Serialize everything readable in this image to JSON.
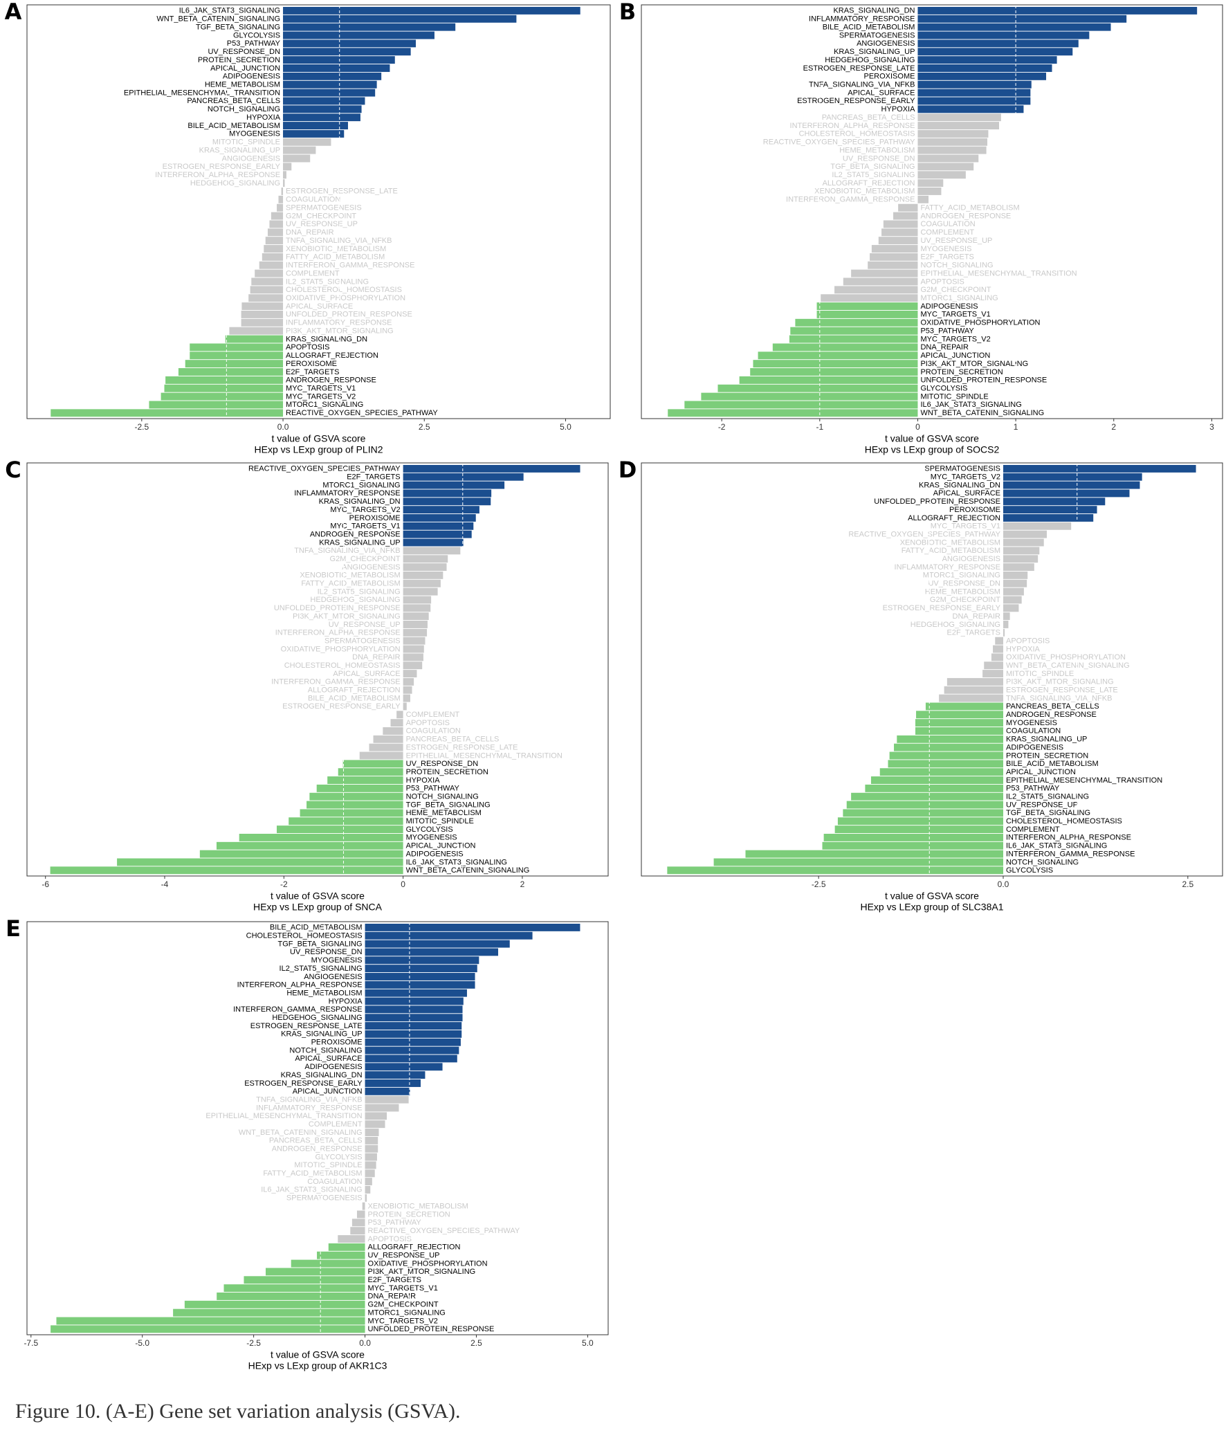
{
  "caption": "Figure 10. (A-E) Gene set variation analysis (GSVA).",
  "chart_data": [
    {
      "type": "bar",
      "orientation": "horizontal",
      "panel_label": "A",
      "x_label": "t value of GSVA score",
      "subtitle": "HExp vs LExp group of PLIN2",
      "xlim": [
        -4.53,
        5.79
      ],
      "xticks": [
        -2.5,
        {
          "value": 0,
          "label": "0.0"
        },
        2.5,
        {
          "value": 5,
          "label": "5.0"
        }
      ],
      "ref_lines": [
        -1,
        1
      ],
      "muted_color": "#c9c9c9",
      "categories": [
        "IL6_JAK_STAT3_SIGNALING",
        "WNT_BETA_CATENIN_SIGNALING",
        "TGF_BETA_SIGNALING",
        "GLYCOLYSIS",
        "P53_PATHWAY",
        "UV_RESPONSE_DN",
        "PROTEIN_SECRETION",
        "APICAL_JUNCTION",
        "ADIPOGENESIS",
        "HEME_METABOLISM",
        "EPITHELIAL_MESENCHYMAL_TRANSITION",
        "PANCREAS_BETA_CELLS",
        "NOTCH_SIGNALING",
        "HYPOXIA",
        "BILE_ACID_METABOLISM",
        "MYOGENESIS",
        "MITOTIC_SPINDLE",
        "KRAS_SIGNALING_UP",
        "ANGIOGENESIS",
        "ESTROGEN_RESPONSE_EARLY",
        "INTERFERON_ALPHA_RESPONSE",
        "HEDGEHOG_SIGNALING",
        "ESTROGEN_RESPONSE_LATE",
        "COAGULATION",
        "SPERMATOGENESIS",
        "G2M_CHECKPOINT",
        "UV_RESPONSE_UP",
        "DNA_REPAIR",
        "TNFA_SIGNALING_VIA_NFKB",
        "XENOBIOTIC_METABOLISM",
        "FATTY_ACID_METABOLISM",
        "INTERFERON_GAMMA_RESPONSE",
        "COMPLEMENT",
        "IL2_STAT5_SIGNALING",
        "CHOLESTEROL_HOMEOSTASIS",
        "OXIDATIVE_PHOSPHORYLATION",
        "APICAL_SURFACE",
        "UNFOLDED_PROTEIN_RESPONSE",
        "INFLAMMATORY_RESPONSE",
        "PI3K_AKT_MTOR_SIGNALING",
        "KRAS_SIGNALING_DN",
        "APOPTOSIS",
        "ALLOGRAFT_REJECTION",
        "PEROXISOME",
        "E2F_TARGETS",
        "ANDROGEN_RESPONSE",
        "MYC_TARGETS_V1",
        "MYC_TARGETS_V2",
        "MTORC1_SIGNALING",
        "REACTIVE_OXYGEN_SPECIES_PATHWAY"
      ],
      "values": [
        5.26,
        4.13,
        3.05,
        2.68,
        2.35,
        2.26,
        1.98,
        1.89,
        1.74,
        1.66,
        1.63,
        1.45,
        1.39,
        1.37,
        1.15,
        1.08,
        0.85,
        0.58,
        0.48,
        0.15,
        0.06,
        0.03,
        -0.03,
        -0.08,
        -0.11,
        -0.21,
        -0.24,
        -0.27,
        -0.31,
        -0.34,
        -0.37,
        -0.42,
        -0.5,
        -0.56,
        -0.58,
        -0.61,
        -0.73,
        -0.74,
        -0.74,
        -0.95,
        -1.02,
        -1.65,
        -1.65,
        -1.73,
        -1.85,
        -2.08,
        -2.1,
        -2.16,
        -2.37,
        -4.11
      ],
      "colors": [
        "#1b4e8f",
        "#1b4e8f",
        "#1b4e8f",
        "#1b4e8f",
        "#1b4e8f",
        "#1b4e8f",
        "#1b4e8f",
        "#1b4e8f",
        "#1b4e8f",
        "#1b4e8f",
        "#1b4e8f",
        "#1b4e8f",
        "#1b4e8f",
        "#1b4e8f",
        "#1b4e8f",
        "#1b4e8f",
        "#c9c9c9",
        "#c9c9c9",
        "#c9c9c9",
        "#c9c9c9",
        "#c9c9c9",
        "#c9c9c9",
        "#c9c9c9",
        "#c9c9c9",
        "#c9c9c9",
        "#c9c9c9",
        "#c9c9c9",
        "#c9c9c9",
        "#c9c9c9",
        "#c9c9c9",
        "#c9c9c9",
        "#c9c9c9",
        "#c9c9c9",
        "#c9c9c9",
        "#c9c9c9",
        "#c9c9c9",
        "#c9c9c9",
        "#c9c9c9",
        "#c9c9c9",
        "#c9c9c9",
        "#7ccd7a",
        "#7ccd7a",
        "#7ccd7a",
        "#7ccd7a",
        "#7ccd7a",
        "#7ccd7a",
        "#7ccd7a",
        "#7ccd7a",
        "#7ccd7a",
        "#7ccd7a"
      ]
    },
    {
      "type": "bar",
      "orientation": "horizontal",
      "panel_label": "B",
      "x_label": "t value of GSVA score",
      "subtitle": "HExp vs LExp group of SOCS2",
      "xlim": [
        -2.82,
        3.11
      ],
      "xticks": [
        -2,
        -1,
        0,
        1,
        2,
        3
      ],
      "ref_lines": [
        -1,
        1
      ],
      "muted_color": "#c9c9c9",
      "categories": [
        "KRAS_SIGNALING_DN",
        "INFLAMMATORY_RESPONSE",
        "BILE_ACID_METABOLISM",
        "SPERMATOGENESIS",
        "ANGIOGENESIS",
        "KRAS_SIGNALING_UP",
        "HEDGEHOG_SIGNALING",
        "ESTROGEN_RESPONSE_LATE",
        "PEROXISOME",
        "TNFA_SIGNALING_VIA_NFKB",
        "APICAL_SURFACE",
        "ESTROGEN_RESPONSE_EARLY",
        "HYPOXIA",
        "PANCREAS_BETA_CELLS",
        "INTERFERON_ALPHA_RESPONSE",
        "CHOLESTEROL_HOMEOSTASIS",
        "REACTIVE_OXYGEN_SPECIES_PATHWAY",
        "HEME_METABOLISM",
        "UV_RESPONSE_DN",
        "TGF_BETA_SIGNALING",
        "IL2_STAT5_SIGNALING",
        "ALLOGRAFT_REJECTION",
        "XENOBIOTIC_METABOLISM",
        "INTERFERON_GAMMA_RESPONSE",
        "FATTY_ACID_METABOLISM",
        "ANDROGEN_RESPONSE",
        "COAGULATION",
        "COMPLEMENT",
        "UV_RESPONSE_UP",
        "MYOGENESIS",
        "E2F_TARGETS",
        "NOTCH_SIGNALING",
        "EPITHELIAL_MESENCHYMAL_TRANSITION",
        "APOPTOSIS",
        "G2M_CHECKPOINT",
        "MTORC1_SIGNALING",
        "ADIPOGENESIS",
        "MYC_TARGETS_V1",
        "OXIDATIVE_PHOSPHORYLATION",
        "P53_PATHWAY",
        "MYC_TARGETS_V2",
        "DNA_REPAIR",
        "APICAL_JUNCTION",
        "PI3K_AKT_MTOR_SIGNALING",
        "PROTEIN_SECRETION",
        "UNFOLDED_PROTEIN_RESPONSE",
        "GLYCOLYSIS",
        "MITOTIC_SPINDLE",
        "IL6_JAK_STAT3_SIGNALING",
        "WNT_BETA_CATENIN_SIGNALING"
      ],
      "values": [
        2.85,
        2.13,
        1.97,
        1.75,
        1.64,
        1.58,
        1.42,
        1.37,
        1.31,
        1.16,
        1.15,
        1.15,
        1.08,
        0.85,
        0.83,
        0.72,
        0.71,
        0.7,
        0.62,
        0.57,
        0.49,
        0.26,
        0.24,
        0.11,
        -0.2,
        -0.25,
        -0.35,
        -0.37,
        -0.4,
        -0.47,
        -0.49,
        -0.51,
        -0.68,
        -0.76,
        -0.85,
        -0.99,
        -1.03,
        -1.03,
        -1.25,
        -1.3,
        -1.31,
        -1.48,
        -1.63,
        -1.68,
        -1.71,
        -1.82,
        -2.04,
        -2.21,
        -2.38,
        -2.55
      ],
      "colors": [
        "#1b4e8f",
        "#1b4e8f",
        "#1b4e8f",
        "#1b4e8f",
        "#1b4e8f",
        "#1b4e8f",
        "#1b4e8f",
        "#1b4e8f",
        "#1b4e8f",
        "#1b4e8f",
        "#1b4e8f",
        "#1b4e8f",
        "#1b4e8f",
        "#c9c9c9",
        "#c9c9c9",
        "#c9c9c9",
        "#c9c9c9",
        "#c9c9c9",
        "#c9c9c9",
        "#c9c9c9",
        "#c9c9c9",
        "#c9c9c9",
        "#c9c9c9",
        "#c9c9c9",
        "#c9c9c9",
        "#c9c9c9",
        "#c9c9c9",
        "#c9c9c9",
        "#c9c9c9",
        "#c9c9c9",
        "#c9c9c9",
        "#c9c9c9",
        "#c9c9c9",
        "#c9c9c9",
        "#c9c9c9",
        "#c9c9c9",
        "#7ccd7a",
        "#7ccd7a",
        "#7ccd7a",
        "#7ccd7a",
        "#7ccd7a",
        "#7ccd7a",
        "#7ccd7a",
        "#7ccd7a",
        "#7ccd7a",
        "#7ccd7a",
        "#7ccd7a",
        "#7ccd7a",
        "#7ccd7a",
        "#7ccd7a"
      ]
    },
    {
      "type": "bar",
      "orientation": "horizontal",
      "panel_label": "C",
      "x_label": "t value of GSVA score",
      "subtitle": "HExp vs LExp group of SNCA",
      "xlim": [
        -6.31,
        3.44
      ],
      "xticks": [
        -6,
        -4,
        -2,
        0,
        2
      ],
      "ref_lines": [
        -1,
        1
      ],
      "muted_color": "#c9c9c9",
      "categories": [
        "REACTIVE_OXYGEN_SPECIES_PATHWAY",
        "E2F_TARGETS",
        "MTORC1_SIGNALING",
        "INFLAMMATORY_RESPONSE",
        "KRAS_SIGNALING_DN",
        "MYC_TARGETS_V2",
        "PEROXISOME",
        "MYC_TARGETS_V1",
        "ANDROGEN_RESPONSE",
        "KRAS_SIGNALING_UP",
        "TNFA_SIGNALING_VIA_NFKB",
        "G2M_CHECKPOINT",
        "ANGIOGENESIS",
        "XENOBIOTIC_METABOLISM",
        "FATTY_ACID_METABOLISM",
        "IL2_STAT5_SIGNALING",
        "HEDGEHOG_SIGNALING",
        "UNFOLDED_PROTEIN_RESPONSE",
        "PI3K_AKT_MTOR_SIGNALING",
        "UV_RESPONSE_UP",
        "INTERFERON_ALPHA_RESPONSE",
        "SPERMATOGENESIS",
        "OXIDATIVE_PHOSPHORYLATION",
        "DNA_REPAIR",
        "CHOLESTEROL_HOMEOSTASIS",
        "APICAL_SURFACE",
        "INTERFERON_GAMMA_RESPONSE",
        "ALLOGRAFT_REJECTION",
        "BILE_ACID_METABOLISM",
        "ESTROGEN_RESPONSE_EARLY",
        "COMPLEMENT",
        "APOPTOSIS",
        "COAGULATION",
        "PANCREAS_BETA_CELLS",
        "ESTROGEN_RESPONSE_LATE",
        "EPITHELIAL_MESENCHYMAL_TRANSITION",
        "UV_RESPONSE_DN",
        "PROTEIN_SECRETION",
        "HYPOXIA",
        "P53_PATHWAY",
        "NOTCH_SIGNALING",
        "TGF_BETA_SIGNALING",
        "HEME_METABOLISM",
        "MITOTIC_SPINDLE",
        "GLYCOLYSIS",
        "MYOGENESIS",
        "APICAL_JUNCTION",
        "ADIPOGENESIS",
        "IL6_JAK_STAT3_SIGNALING",
        "WNT_BETA_CATENIN_SIGNALING"
      ],
      "values": [
        2.97,
        2.02,
        1.7,
        1.48,
        1.47,
        1.28,
        1.22,
        1.18,
        1.15,
        1.01,
        0.96,
        0.75,
        0.73,
        0.67,
        0.63,
        0.58,
        0.47,
        0.46,
        0.43,
        0.41,
        0.4,
        0.37,
        0.35,
        0.34,
        0.32,
        0.23,
        0.18,
        0.15,
        0.12,
        0.06,
        -0.11,
        -0.21,
        -0.34,
        -0.5,
        -0.57,
        -0.73,
        -1.01,
        -1.09,
        -1.27,
        -1.45,
        -1.57,
        -1.62,
        -1.73,
        -1.92,
        -2.12,
        -2.75,
        -3.13,
        -3.41,
        -4.8,
        -5.92
      ],
      "colors": [
        "#1b4e8f",
        "#1b4e8f",
        "#1b4e8f",
        "#1b4e8f",
        "#1b4e8f",
        "#1b4e8f",
        "#1b4e8f",
        "#1b4e8f",
        "#1b4e8f",
        "#1b4e8f",
        "#c9c9c9",
        "#c9c9c9",
        "#c9c9c9",
        "#c9c9c9",
        "#c9c9c9",
        "#c9c9c9",
        "#c9c9c9",
        "#c9c9c9",
        "#c9c9c9",
        "#c9c9c9",
        "#c9c9c9",
        "#c9c9c9",
        "#c9c9c9",
        "#c9c9c9",
        "#c9c9c9",
        "#c9c9c9",
        "#c9c9c9",
        "#c9c9c9",
        "#c9c9c9",
        "#c9c9c9",
        "#c9c9c9",
        "#c9c9c9",
        "#c9c9c9",
        "#c9c9c9",
        "#c9c9c9",
        "#c9c9c9",
        "#7ccd7a",
        "#7ccd7a",
        "#7ccd7a",
        "#7ccd7a",
        "#7ccd7a",
        "#7ccd7a",
        "#7ccd7a",
        "#7ccd7a",
        "#7ccd7a",
        "#7ccd7a",
        "#7ccd7a",
        "#7ccd7a",
        "#7ccd7a",
        "#7ccd7a"
      ]
    },
    {
      "type": "bar",
      "orientation": "horizontal",
      "panel_label": "D",
      "x_label": "t value of GSVA score",
      "subtitle": "HExp vs LExp group of SLC38A1",
      "xlim": [
        -4.9,
        2.97
      ],
      "xticks": [
        -2.5,
        {
          "value": 0,
          "label": "0.0"
        },
        2.5
      ],
      "ref_lines": [
        -1,
        1
      ],
      "muted_color": "#c9c9c9",
      "categories": [
        "SPERMATOGENESIS",
        "MYC_TARGETS_V2",
        "KRAS_SIGNALING_DN",
        "APICAL_SURFACE",
        "UNFOLDED_PROTEIN_RESPONSE",
        "PEROXISOME",
        "ALLOGRAFT_REJECTION",
        "MYC_TARGETS_V1",
        "REACTIVE_OXYGEN_SPECIES_PATHWAY",
        "XENOBIOTIC_METABOLISM",
        "FATTY_ACID_METABOLISM",
        "ANGIOGENESIS",
        "INFLAMMATORY_RESPONSE",
        "MTORC1_SIGNALING",
        "UV_RESPONSE_DN",
        "HEME_METABOLISM",
        "G2M_CHECKPOINT",
        "ESTROGEN_RESPONSE_EARLY",
        "DNA_REPAIR",
        "HEDGEHOG_SIGNALING",
        "E2F_TARGETS",
        "APOPTOSIS",
        "HYPOXIA",
        "OXIDATIVE_PHOSPHORYLATION",
        "WNT_BETA_CATENIN_SIGNALING",
        "MITOTIC_SPINDLE",
        "PI3K_AKT_MTOR_SIGNALING",
        "ESTROGEN_RESPONSE_LATE",
        "TNFA_SIGNALING_VIA_NFKB",
        "PANCREAS_BETA_CELLS",
        "ANDROGEN_RESPONSE",
        "MYOGENESIS",
        "COAGULATION",
        "KRAS_SIGNALING_UP",
        "ADIPOGENESIS",
        "PROTEIN_SECRETION",
        "BILE_ACID_METABOLISM",
        "APICAL_JUNCTION",
        "EPITHELIAL_MESENCHYMAL_TRANSITION",
        "P53_PATHWAY",
        "IL2_STAT5_SIGNALING",
        "UV_RESPONSE_UP",
        "TGF_BETA_SIGNALING",
        "CHOLESTEROL_HOMEOSTASIS",
        "COMPLEMENT",
        "INTERFERON_ALPHA_RESPONSE",
        "IL6_JAK_STAT3_SIGNALING",
        "INTERFERON_GAMMA_RESPONSE",
        "NOTCH_SIGNALING",
        "GLYCOLYSIS"
      ],
      "values": [
        2.61,
        1.88,
        1.85,
        1.71,
        1.38,
        1.27,
        1.22,
        0.92,
        0.59,
        0.55,
        0.49,
        0.47,
        0.42,
        0.33,
        0.32,
        0.28,
        0.25,
        0.21,
        0.09,
        0.07,
        0.02,
        -0.11,
        -0.14,
        -0.16,
        -0.26,
        -0.28,
        -0.76,
        -0.8,
        -0.87,
        -1.05,
        -1.18,
        -1.19,
        -1.19,
        -1.44,
        -1.48,
        -1.54,
        -1.56,
        -1.67,
        -1.79,
        -1.87,
        -2.06,
        -2.12,
        -2.17,
        -2.24,
        -2.28,
        -2.43,
        -2.45,
        -3.49,
        -3.92,
        -4.55
      ],
      "colors": [
        "#1b4e8f",
        "#1b4e8f",
        "#1b4e8f",
        "#1b4e8f",
        "#1b4e8f",
        "#1b4e8f",
        "#1b4e8f",
        "#c9c9c9",
        "#c9c9c9",
        "#c9c9c9",
        "#c9c9c9",
        "#c9c9c9",
        "#c9c9c9",
        "#c9c9c9",
        "#c9c9c9",
        "#c9c9c9",
        "#c9c9c9",
        "#c9c9c9",
        "#c9c9c9",
        "#c9c9c9",
        "#c9c9c9",
        "#c9c9c9",
        "#c9c9c9",
        "#c9c9c9",
        "#c9c9c9",
        "#c9c9c9",
        "#c9c9c9",
        "#c9c9c9",
        "#c9c9c9",
        "#7ccd7a",
        "#7ccd7a",
        "#7ccd7a",
        "#7ccd7a",
        "#7ccd7a",
        "#7ccd7a",
        "#7ccd7a",
        "#7ccd7a",
        "#7ccd7a",
        "#7ccd7a",
        "#7ccd7a",
        "#7ccd7a",
        "#7ccd7a",
        "#7ccd7a",
        "#7ccd7a",
        "#7ccd7a",
        "#7ccd7a",
        "#7ccd7a",
        "#7ccd7a",
        "#7ccd7a",
        "#7ccd7a"
      ]
    },
    {
      "type": "bar",
      "orientation": "horizontal",
      "panel_label": "E",
      "x_label": "t value of GSVA score",
      "subtitle": "HExp vs LExp group of AKR1C3",
      "xlim": [
        -7.59,
        5.46
      ],
      "xticks": [
        -7.5,
        {
          "value": -5,
          "label": "-5.0"
        },
        -2.5,
        {
          "value": 0,
          "label": "0.0"
        },
        2.5,
        {
          "value": 5,
          "label": "5.0"
        }
      ],
      "ref_lines": [
        -1,
        1
      ],
      "muted_color": "#c9c9c9",
      "categories": [
        "BILE_ACID_METABOLISM",
        "CHOLESTEROL_HOMEOSTASIS",
        "TGF_BETA_SIGNALING",
        "UV_RESPONSE_DN",
        "MYOGENESIS",
        "IL2_STAT5_SIGNALING",
        "ANGIOGENESIS",
        "INTERFERON_ALPHA_RESPONSE",
        "HEME_METABOLISM",
        "HYPOXIA",
        "INTERFERON_GAMMA_RESPONSE",
        "HEDGEHOG_SIGNALING",
        "ESTROGEN_RESPONSE_LATE",
        "KRAS_SIGNALING_UP",
        "PEROXISOME",
        "NOTCH_SIGNALING",
        "APICAL_SURFACE",
        "ADIPOGENESIS",
        "KRAS_SIGNALING_DN",
        "ESTROGEN_RESPONSE_EARLY",
        "APICAL_JUNCTION",
        "TNFA_SIGNALING_VIA_NFKB",
        "INFLAMMATORY_RESPONSE",
        "EPITHELIAL_MESENCHYMAL_TRANSITION",
        "COMPLEMENT",
        "WNT_BETA_CATENIN_SIGNALING",
        "PANCREAS_BETA_CELLS",
        "ANDROGEN_RESPONSE",
        "GLYCOLYSIS",
        "MITOTIC_SPINDLE",
        "FATTY_ACID_METABOLISM",
        "COAGULATION",
        "IL6_JAK_STAT3_SIGNALING",
        "SPERMATOGENESIS",
        "XENOBIOTIC_METABOLISM",
        "PROTEIN_SECRETION",
        "P53_PATHWAY",
        "REACTIVE_OXYGEN_SPECIES_PATHWAY",
        "APOPTOSIS",
        "ALLOGRAFT_REJECTION",
        "UV_RESPONSE_UP",
        "OXIDATIVE_PHOSPHORYLATION",
        "PI3K_AKT_MTOR_SIGNALING",
        "E2F_TARGETS",
        "MYC_TARGETS_V1",
        "DNA_REPAIR",
        "G2M_CHECKPOINT",
        "MTORC1_SIGNALING",
        "MYC_TARGETS_V2",
        "UNFOLDED_PROTEIN_RESPONSE"
      ],
      "values": [
        4.83,
        3.76,
        3.25,
        2.99,
        2.56,
        2.52,
        2.47,
        2.47,
        2.29,
        2.21,
        2.19,
        2.19,
        2.17,
        2.17,
        2.15,
        2.11,
        2.07,
        1.74,
        1.35,
        1.25,
        1.01,
        0.98,
        0.76,
        0.49,
        0.45,
        0.31,
        0.29,
        0.29,
        0.27,
        0.25,
        0.22,
        0.16,
        0.12,
        0.04,
        -0.06,
        -0.18,
        -0.29,
        -0.33,
        -0.61,
        -0.82,
        -1.08,
        -1.66,
        -2.23,
        -2.72,
        -3.17,
        -3.33,
        -4.05,
        -4.31,
        -6.93,
        -7.06
      ],
      "colors": [
        "#1b4e8f",
        "#1b4e8f",
        "#1b4e8f",
        "#1b4e8f",
        "#1b4e8f",
        "#1b4e8f",
        "#1b4e8f",
        "#1b4e8f",
        "#1b4e8f",
        "#1b4e8f",
        "#1b4e8f",
        "#1b4e8f",
        "#1b4e8f",
        "#1b4e8f",
        "#1b4e8f",
        "#1b4e8f",
        "#1b4e8f",
        "#1b4e8f",
        "#1b4e8f",
        "#1b4e8f",
        "#1b4e8f",
        "#c9c9c9",
        "#c9c9c9",
        "#c9c9c9",
        "#c9c9c9",
        "#c9c9c9",
        "#c9c9c9",
        "#c9c9c9",
        "#c9c9c9",
        "#c9c9c9",
        "#c9c9c9",
        "#c9c9c9",
        "#c9c9c9",
        "#c9c9c9",
        "#c9c9c9",
        "#c9c9c9",
        "#c9c9c9",
        "#c9c9c9",
        "#c9c9c9",
        "#7ccd7a",
        "#7ccd7a",
        "#7ccd7a",
        "#7ccd7a",
        "#7ccd7a",
        "#7ccd7a",
        "#7ccd7a",
        "#7ccd7a",
        "#7ccd7a",
        "#7ccd7a",
        "#7ccd7a"
      ]
    }
  ]
}
